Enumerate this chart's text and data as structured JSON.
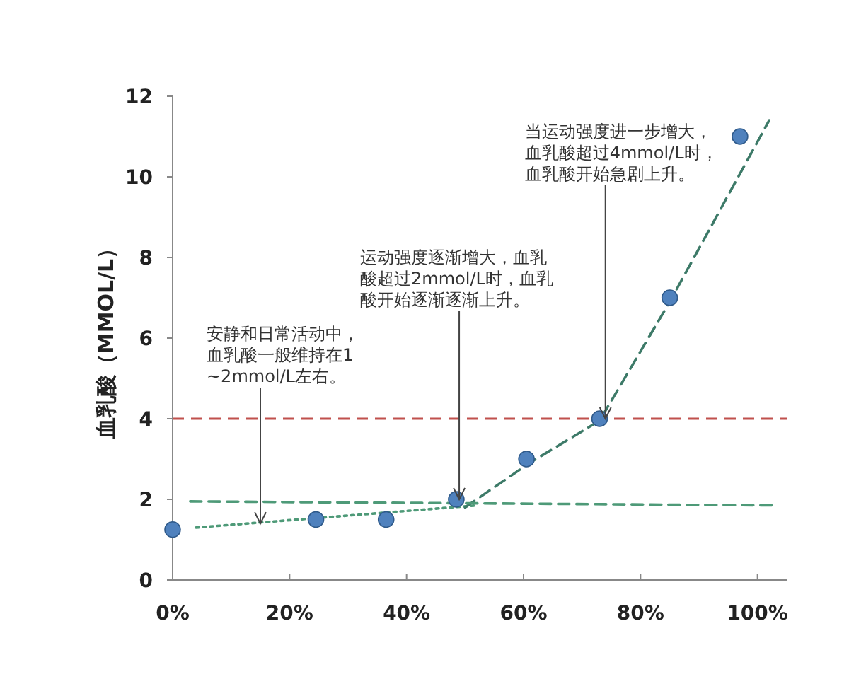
{
  "chart_data": {
    "type": "scatter",
    "ylabel": "血乳酸（MMOL/L）",
    "xlim": [
      0,
      105
    ],
    "xticks": [
      {
        "value": 0,
        "label": "0%"
      },
      {
        "value": 20,
        "label": "20%"
      },
      {
        "value": 40,
        "label": "40%"
      },
      {
        "value": 60,
        "label": "60%"
      },
      {
        "value": 80,
        "label": "80%"
      },
      {
        "value": 100,
        "label": "100%"
      }
    ],
    "ylim": [
      0,
      12
    ],
    "yticks": [
      0,
      2,
      4,
      6,
      8,
      10,
      12
    ],
    "series": [
      {
        "type": "scatter",
        "color": "#4f81bd",
        "marker": "circle",
        "x": [
          0,
          24.5,
          36.5,
          48.5,
          60.5,
          73,
          85,
          97
        ],
        "values": [
          1.25,
          1.5,
          1.5,
          2,
          3,
          4,
          7,
          11
        ]
      },
      {
        "type": "line",
        "color": "#4e9a78",
        "line_style": "dotted",
        "x": [
          4,
          52
        ],
        "values": [
          1.3,
          1.85
        ]
      },
      {
        "type": "line",
        "color": "#3d7a68",
        "line_style": "dashed",
        "x": [
          50,
          61,
          73,
          85,
          102
        ],
        "values": [
          1.8,
          2.9,
          3.95,
          6.9,
          11.4
        ]
      },
      {
        "type": "line",
        "color": "#4e9a78",
        "line_style": "dashed",
        "x": [
          3,
          103
        ],
        "values": [
          1.95,
          1.85
        ]
      }
    ],
    "ref_lines": [
      {
        "axis": "y",
        "value": 4,
        "color": "#c0504d",
        "line_style": "dashed"
      }
    ],
    "annotations": [
      {
        "text": "安静和日常活动中，血乳酸一般维持在1~2mmol/L左右。",
        "x": 15,
        "y": 1.4
      },
      {
        "text": "运动强度逐渐增大，血乳酸超过2mmol/L时，血乳酸开始逐渐逐渐上升。",
        "x": 49,
        "y": 2
      },
      {
        "text": "当运动强度进一步增大，血乳酸超过4mmol/L时，血乳酸开始急剧上升。",
        "x": 74,
        "y": 4
      }
    ]
  }
}
